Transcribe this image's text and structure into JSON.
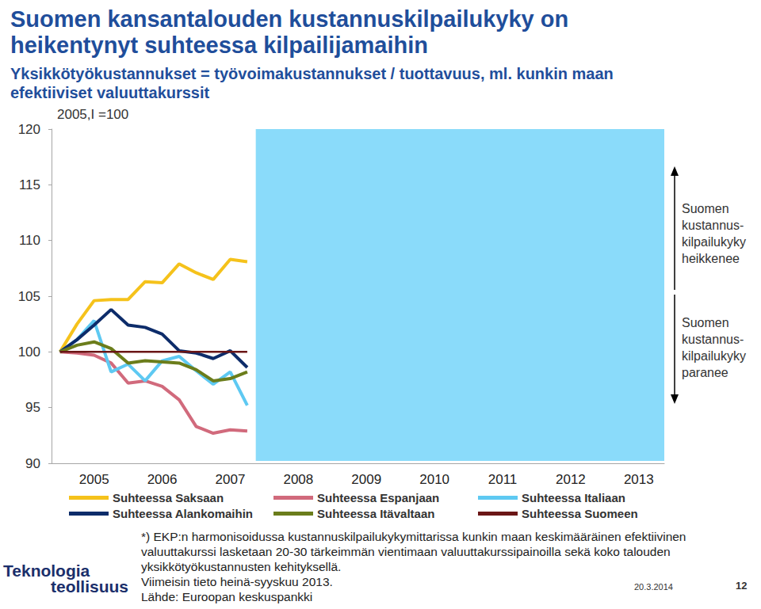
{
  "chart_data": {
    "type": "line",
    "title": "Suomen kansantalouden kustannuskilpailukyky on heikentynyt suhteessa kilpailijamaihin",
    "subtitle": "Yksikkötyökustannukset = työvoimakustannukset / tuottavuus, ml. kunkin maan efektiiviset valuuttakurssit",
    "annotations": {
      "base": "2005,I =100",
      "upper": [
        "Suomen",
        "kustannus-",
        "kilpailukyky",
        "heikkenee"
      ],
      "lower": [
        "Suomen",
        "kustannus-",
        "kilpailukyky",
        "paranee"
      ],
      "footnote": [
        "*) EKP:n harmonisoidussa kustannuskilpailukykymittarissa kunkin maan keskimääräinen efektiivinen",
        "valuuttakurssi lasketaan 20-30 tärkeimmän vientimaan valuuttakurssipainoilla sekä koko talouden",
        "yksikkötyökustannusten kehityksellä.",
        "Viimeisin tieto heinä-syyskuu 2013.",
        "Lähde: Euroopan keskuspankki"
      ],
      "logo": [
        "Teknologia",
        "teollisuus"
      ],
      "date": "20.3.2014",
      "page": "12"
    },
    "categories": [
      null,
      null,
      "2005",
      null,
      null,
      null,
      "2006",
      null,
      null,
      null,
      "2007",
      null,
      null,
      null,
      "2008",
      null,
      null,
      null,
      "2009",
      null,
      null,
      null,
      "2010",
      null,
      null,
      null,
      "2011",
      null,
      null,
      null,
      "2012",
      null,
      null,
      null,
      "2013",
      null
    ],
    "series": [
      {
        "name": "Suhteessa Saksaan",
        "color": "#f5c21b",
        "values": [
          100,
          102.5,
          104.6,
          104.7,
          104.7,
          106.3,
          106.2,
          107.9,
          107.1,
          106.5,
          108.3,
          108.1,
          null,
          null,
          null,
          null,
          null,
          null,
          null,
          null,
          null,
          null,
          null,
          null,
          null,
          null,
          null,
          null,
          null,
          null,
          null,
          null,
          null,
          null,
          null,
          null
        ]
      },
      {
        "name": "Suhteessa Espanjaan",
        "color": "#d16a7c",
        "values": [
          100,
          99.9,
          99.7,
          99.0,
          97.2,
          97.4,
          96.9,
          95.7,
          93.3,
          92.7,
          93.0,
          92.9,
          null,
          null,
          null,
          null,
          null,
          null,
          null,
          null,
          null,
          null,
          null,
          null,
          null,
          null,
          null,
          null,
          null,
          null,
          null,
          null,
          null,
          null,
          null,
          null
        ]
      },
      {
        "name": "Suhteessa Italiaan",
        "color": "#5ec9f2",
        "values": [
          100,
          101.1,
          102.8,
          98.2,
          98.9,
          97.4,
          99.2,
          99.6,
          98.3,
          97.1,
          98.2,
          95.2,
          null,
          null,
          null,
          null,
          null,
          null,
          null,
          null,
          null,
          null,
          null,
          null,
          null,
          null,
          null,
          null,
          null,
          null,
          null,
          null,
          null,
          null,
          null,
          null
        ]
      },
      {
        "name": "Suhteessa Alankomaihin",
        "color": "#0d2c6a",
        "values": [
          100,
          101.1,
          102.4,
          103.8,
          102.4,
          102.2,
          101.6,
          100.1,
          99.9,
          99.4,
          100.1,
          98.6,
          null,
          null,
          null,
          null,
          null,
          null,
          null,
          null,
          null,
          null,
          null,
          null,
          null,
          null,
          null,
          null,
          null,
          null,
          null,
          null,
          null,
          null,
          null,
          null
        ]
      },
      {
        "name": "Suhteessa Itävaltaan",
        "color": "#6b7d1b",
        "values": [
          100,
          100.6,
          100.9,
          100.3,
          99.0,
          99.2,
          99.1,
          99.0,
          98.4,
          97.4,
          97.6,
          98.2,
          null,
          null,
          null,
          null,
          null,
          null,
          null,
          null,
          null,
          null,
          null,
          null,
          null,
          null,
          null,
          null,
          null,
          null,
          null,
          null,
          null,
          null,
          null,
          null
        ]
      },
      {
        "name": "Suhteessa Suomeen",
        "color": "#6b1616",
        "values": [
          100,
          100,
          100,
          100,
          100,
          100,
          100,
          100,
          100,
          100,
          100,
          100,
          null,
          null,
          null,
          null,
          null,
          null,
          null,
          null,
          null,
          null,
          null,
          null,
          null,
          null,
          null,
          null,
          null,
          null,
          null,
          null,
          null,
          null,
          null,
          null
        ]
      }
    ],
    "ylim": [
      90,
      120
    ],
    "yticks": [
      90,
      95,
      100,
      105,
      110,
      115,
      120
    ],
    "grid": false,
    "legend": "bottom"
  }
}
